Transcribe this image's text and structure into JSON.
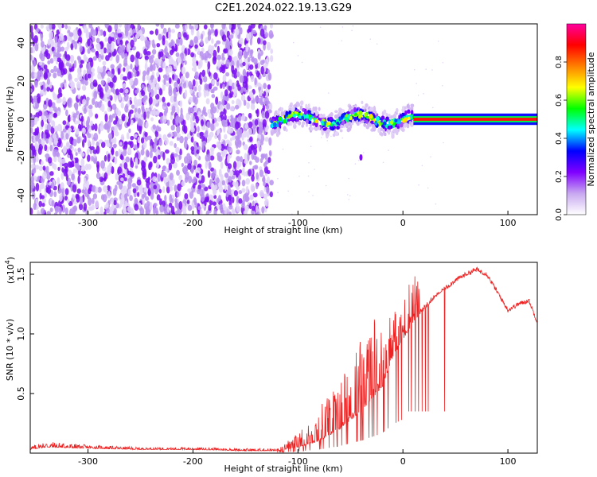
{
  "title": "C2E1.2024.022.19.13.G29",
  "chart_data": [
    {
      "type": "heatmap",
      "xlabel": "Height of straight line (km)",
      "ylabel": "Frequency (Hz)",
      "xlim": [
        -355,
        128
      ],
      "ylim": [
        -50,
        50
      ],
      "x_ticks": [
        -300,
        -200,
        -100,
        0,
        100
      ],
      "y_ticks": [
        -40,
        -20,
        0,
        20,
        40
      ],
      "colorbar": {
        "label": "Normalized spectral amplitude",
        "range": [
          0,
          1
        ],
        "ticks": [
          "0.0",
          "0.2",
          "0.4",
          "0.6",
          "0.8"
        ],
        "colors": [
          "#ffffff",
          "#c8a8f0",
          "#8000ff",
          "#0000ff",
          "#00ffff",
          "#00ff00",
          "#ffff00",
          "#ff8000",
          "#ff0000",
          "#ff00a0"
        ]
      },
      "regions": [
        {
          "x_range": [
            -355,
            -125
          ],
          "pattern": "scattered noise",
          "freq_range": [
            -50,
            50
          ],
          "amplitude": "0.0-0.1"
        },
        {
          "x_range": [
            -125,
            10
          ],
          "pattern": "noisy band near 0 Hz",
          "freq_range": [
            -8,
            8
          ],
          "amplitude": "0.1-0.8"
        },
        {
          "x_range": [
            10,
            128
          ],
          "pattern": "steady carrier line",
          "freq": 0,
          "amplitude": "0.8-1.0"
        }
      ]
    },
    {
      "type": "line",
      "xlabel": "Height of straight line (km)",
      "ylabel": "SNR (10 * v/v)",
      "y_multiplier": "(x10",
      "y_multiplier_exp": "4",
      "xlim": [
        -355,
        128
      ],
      "ylim": [
        0,
        1.6
      ],
      "x_ticks": [
        -300,
        -200,
        -100,
        0,
        100
      ],
      "y_ticks": [
        "0.5",
        "1.0",
        "1.5"
      ],
      "y_tick_values": [
        0.5,
        1.0,
        1.5
      ],
      "series_color": "#ee2222",
      "envelope": {
        "x": [
          -355,
          -340,
          -300,
          -250,
          -200,
          -150,
          -120,
          -100,
          -80,
          -60,
          -40,
          -20,
          -10,
          0,
          10,
          20,
          30,
          40,
          50,
          60,
          70,
          80,
          90,
          100,
          110,
          120,
          128
        ],
        "base": [
          0.03,
          0.05,
          0.04,
          0.03,
          0.03,
          0.02,
          0.02,
          0.05,
          0.1,
          0.2,
          0.35,
          0.55,
          0.8,
          0.95,
          1.1,
          1.2,
          1.3,
          1.38,
          1.45,
          1.5,
          1.54,
          1.5,
          1.35,
          1.2,
          1.25,
          1.28,
          1.1
        ],
        "peak": [
          0.06,
          0.1,
          0.07,
          0.05,
          0.05,
          0.04,
          0.04,
          0.2,
          0.45,
          0.75,
          1.1,
          1.4,
          1.3,
          1.35,
          1.6,
          1.25,
          1.33,
          1.4,
          1.5,
          1.53,
          1.55,
          1.52,
          1.37,
          1.22,
          1.27,
          1.3,
          1.12
        ]
      }
    }
  ]
}
